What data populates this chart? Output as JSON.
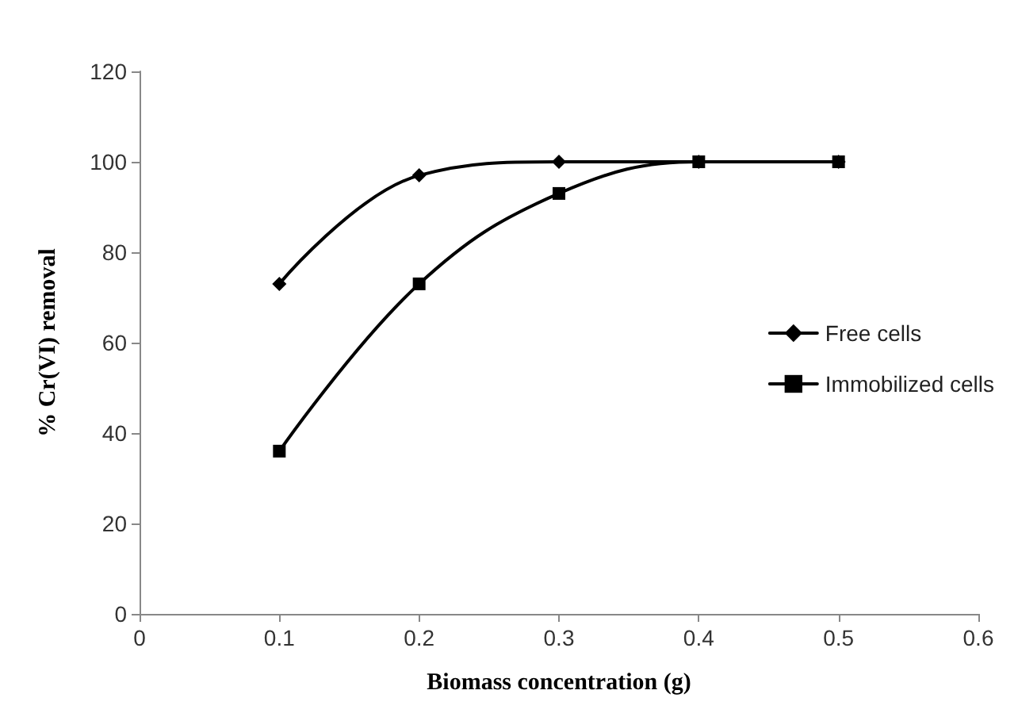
{
  "chart_data": {
    "type": "line",
    "xlabel": "Biomass concentration (g)",
    "ylabel": "% Cr(VI) removal",
    "x": [
      0.1,
      0.2,
      0.3,
      0.4,
      0.5
    ],
    "series": [
      {
        "name": "Free cells",
        "color": "#000000",
        "marker": "diamond",
        "values": [
          73,
          97,
          100,
          100,
          100
        ]
      },
      {
        "name": "Immobilized cells",
        "color": "#000000",
        "marker": "square",
        "values": [
          36,
          73,
          93,
          100,
          100
        ]
      }
    ],
    "xlim": [
      0,
      0.6
    ],
    "xticks": [
      0,
      0.1,
      0.2,
      0.3,
      0.4,
      0.5,
      0.6
    ],
    "ylim": [
      0,
      120
    ],
    "yticks": [
      0,
      20,
      40,
      60,
      80,
      100,
      120
    ],
    "grid": false,
    "legend": "right",
    "line_style": "solid"
  }
}
